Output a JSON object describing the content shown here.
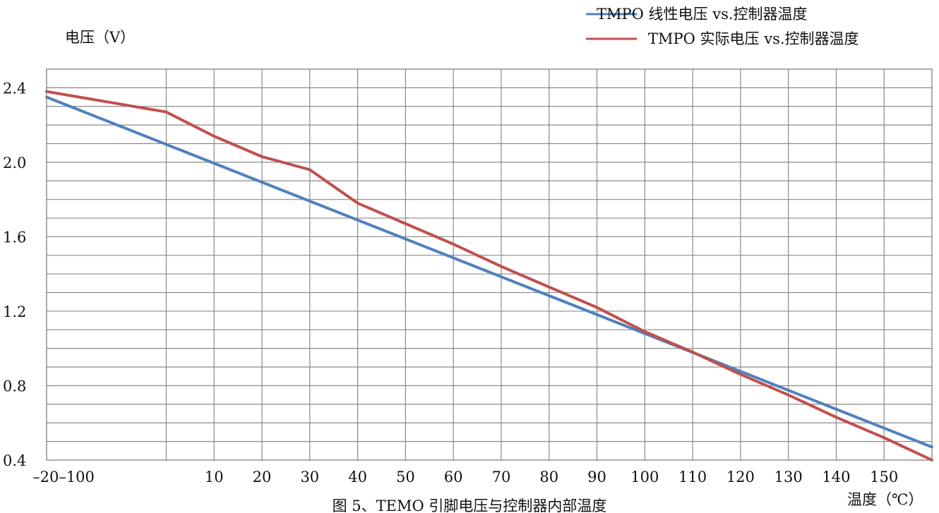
{
  "chart_data": {
    "type": "line",
    "title": "",
    "caption": "图 5、TEMO 引脚电压与控制器内部温度",
    "ylabel": "电压（V）",
    "xlabel": "温度（℃）",
    "xlim": [
      -25,
      160
    ],
    "ylim": [
      0.4,
      2.5
    ],
    "x_tick_labels": [
      "–20–100",
      "10",
      "20",
      "30",
      "40",
      "50",
      "60",
      "70",
      "80",
      "90",
      "100",
      "110",
      "120",
      "130",
      "140",
      "150"
    ],
    "y_ticks": [
      0.4,
      0.8,
      1.2,
      1.6,
      2.0,
      2.4
    ],
    "y_tick_labels": [
      "0.4",
      "0.8",
      "1.2",
      "1.6",
      "2.0",
      "2.4"
    ],
    "grid": true,
    "legend_position": "top-right",
    "series": [
      {
        "name": "TMPO 线性电压 vs.控制器温度",
        "color": "#4f81bd",
        "x": [
          -25,
          160
        ],
        "y": [
          2.35,
          0.47
        ]
      },
      {
        "name": "TMPO 实际电压 vs.控制器温度",
        "color": "#c0504d",
        "x": [
          -25,
          0,
          10,
          20,
          30,
          40,
          50,
          60,
          70,
          80,
          90,
          100,
          110,
          120,
          130,
          140,
          150,
          160
        ],
        "y": [
          2.38,
          2.27,
          2.14,
          2.03,
          1.96,
          1.78,
          1.67,
          1.56,
          1.44,
          1.33,
          1.22,
          1.09,
          0.98,
          0.86,
          0.75,
          0.63,
          0.52,
          0.4
        ]
      }
    ]
  }
}
